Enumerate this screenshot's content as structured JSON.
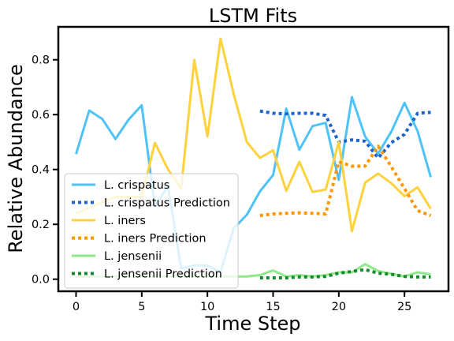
{
  "chart_data": {
    "type": "line",
    "title": "LSTM Fits",
    "xlabel": "Time Step",
    "ylabel": "Relative Abundance",
    "xlim": [
      -1.35,
      28.35
    ],
    "ylim": [
      -0.044,
      0.92
    ],
    "xticks": [
      0,
      5,
      10,
      15,
      20,
      25
    ],
    "yticks": [
      0.0,
      0.2,
      0.4,
      0.6,
      0.8
    ],
    "ytick_labels": [
      "0.0",
      "0.2",
      "0.4",
      "0.6",
      "0.8"
    ],
    "grid": false,
    "legend_position": "lower-left",
    "series": [
      {
        "name": "L. crispatus",
        "color": "#4fc3f7",
        "style": "solid",
        "x": [
          0,
          1,
          2,
          3,
          4,
          5,
          6,
          7,
          8,
          9,
          10,
          11,
          12,
          13,
          14,
          15,
          16,
          17,
          18,
          19,
          20,
          21,
          22,
          23,
          24,
          25,
          26,
          27
        ],
        "y": [
          0.456,
          0.615,
          0.584,
          0.511,
          0.582,
          0.634,
          0.265,
          0.34,
          0.04,
          0.05,
          0.05,
          0.025,
          0.185,
          0.235,
          0.32,
          0.38,
          0.622,
          0.472,
          0.558,
          0.57,
          0.362,
          0.664,
          0.52,
          0.458,
          0.538,
          0.643,
          0.54,
          0.372
        ]
      },
      {
        "name": "L. crispatus Prediction",
        "color": "#1e64c8",
        "style": "dotted",
        "x": [
          14,
          15,
          16,
          17,
          18,
          19,
          20,
          21,
          22,
          23,
          24,
          25,
          26,
          27
        ],
        "y": [
          0.613,
          0.605,
          0.603,
          0.605,
          0.605,
          0.597,
          0.5,
          0.508,
          0.503,
          0.442,
          0.498,
          0.528,
          0.605,
          0.608
        ]
      },
      {
        "name": "L. iners",
        "color": "#fdd23c",
        "style": "solid",
        "x": [
          0,
          1,
          2,
          3,
          4,
          5,
          6,
          7,
          8,
          9,
          10,
          11,
          12,
          13,
          14,
          15,
          16,
          17,
          18,
          19,
          20,
          21,
          22,
          23,
          24,
          25,
          26,
          27
        ],
        "y": [
          0.24,
          0.26,
          0.28,
          0.3,
          0.3,
          0.3,
          0.497,
          0.4,
          0.33,
          0.8,
          0.52,
          0.877,
          0.675,
          0.5,
          0.442,
          0.47,
          0.322,
          0.428,
          0.318,
          0.327,
          0.5,
          0.175,
          0.352,
          0.385,
          0.35,
          0.303,
          0.335,
          0.256
        ]
      },
      {
        "name": "L. iners Prediction",
        "color": "#ff9800",
        "style": "dotted",
        "x": [
          14,
          15,
          16,
          17,
          18,
          19,
          20,
          21,
          22,
          23,
          24,
          25,
          26,
          27
        ],
        "y": [
          0.232,
          0.238,
          0.24,
          0.242,
          0.24,
          0.238,
          0.428,
          0.412,
          0.412,
          0.485,
          0.41,
          0.33,
          0.25,
          0.232
        ]
      },
      {
        "name": "L. jensenii",
        "color": "#90e88a",
        "style": "solid",
        "x": [
          0,
          1,
          2,
          3,
          4,
          5,
          6,
          7,
          8,
          9,
          10,
          11,
          12,
          13,
          14,
          15,
          16,
          17,
          18,
          19,
          20,
          21,
          22,
          23,
          24,
          25,
          26,
          27
        ],
        "y": [
          0.01,
          0.01,
          0.01,
          0.01,
          0.01,
          0.01,
          0.01,
          0.01,
          0.01,
          0.01,
          0.01,
          0.01,
          0.01,
          0.01,
          0.015,
          0.032,
          0.01,
          0.015,
          0.01,
          0.015,
          0.025,
          0.025,
          0.055,
          0.03,
          0.02,
          0.01,
          0.025,
          0.018
        ]
      },
      {
        "name": "L. jensenii Prediction",
        "color": "#188a2e",
        "style": "dotted",
        "x": [
          14,
          15,
          16,
          17,
          18,
          19,
          20,
          21,
          22,
          23,
          24,
          25,
          26,
          27
        ],
        "y": [
          0.005,
          0.005,
          0.005,
          0.008,
          0.008,
          0.01,
          0.022,
          0.028,
          0.035,
          0.022,
          0.018,
          0.01,
          0.008,
          0.008
        ]
      }
    ]
  }
}
